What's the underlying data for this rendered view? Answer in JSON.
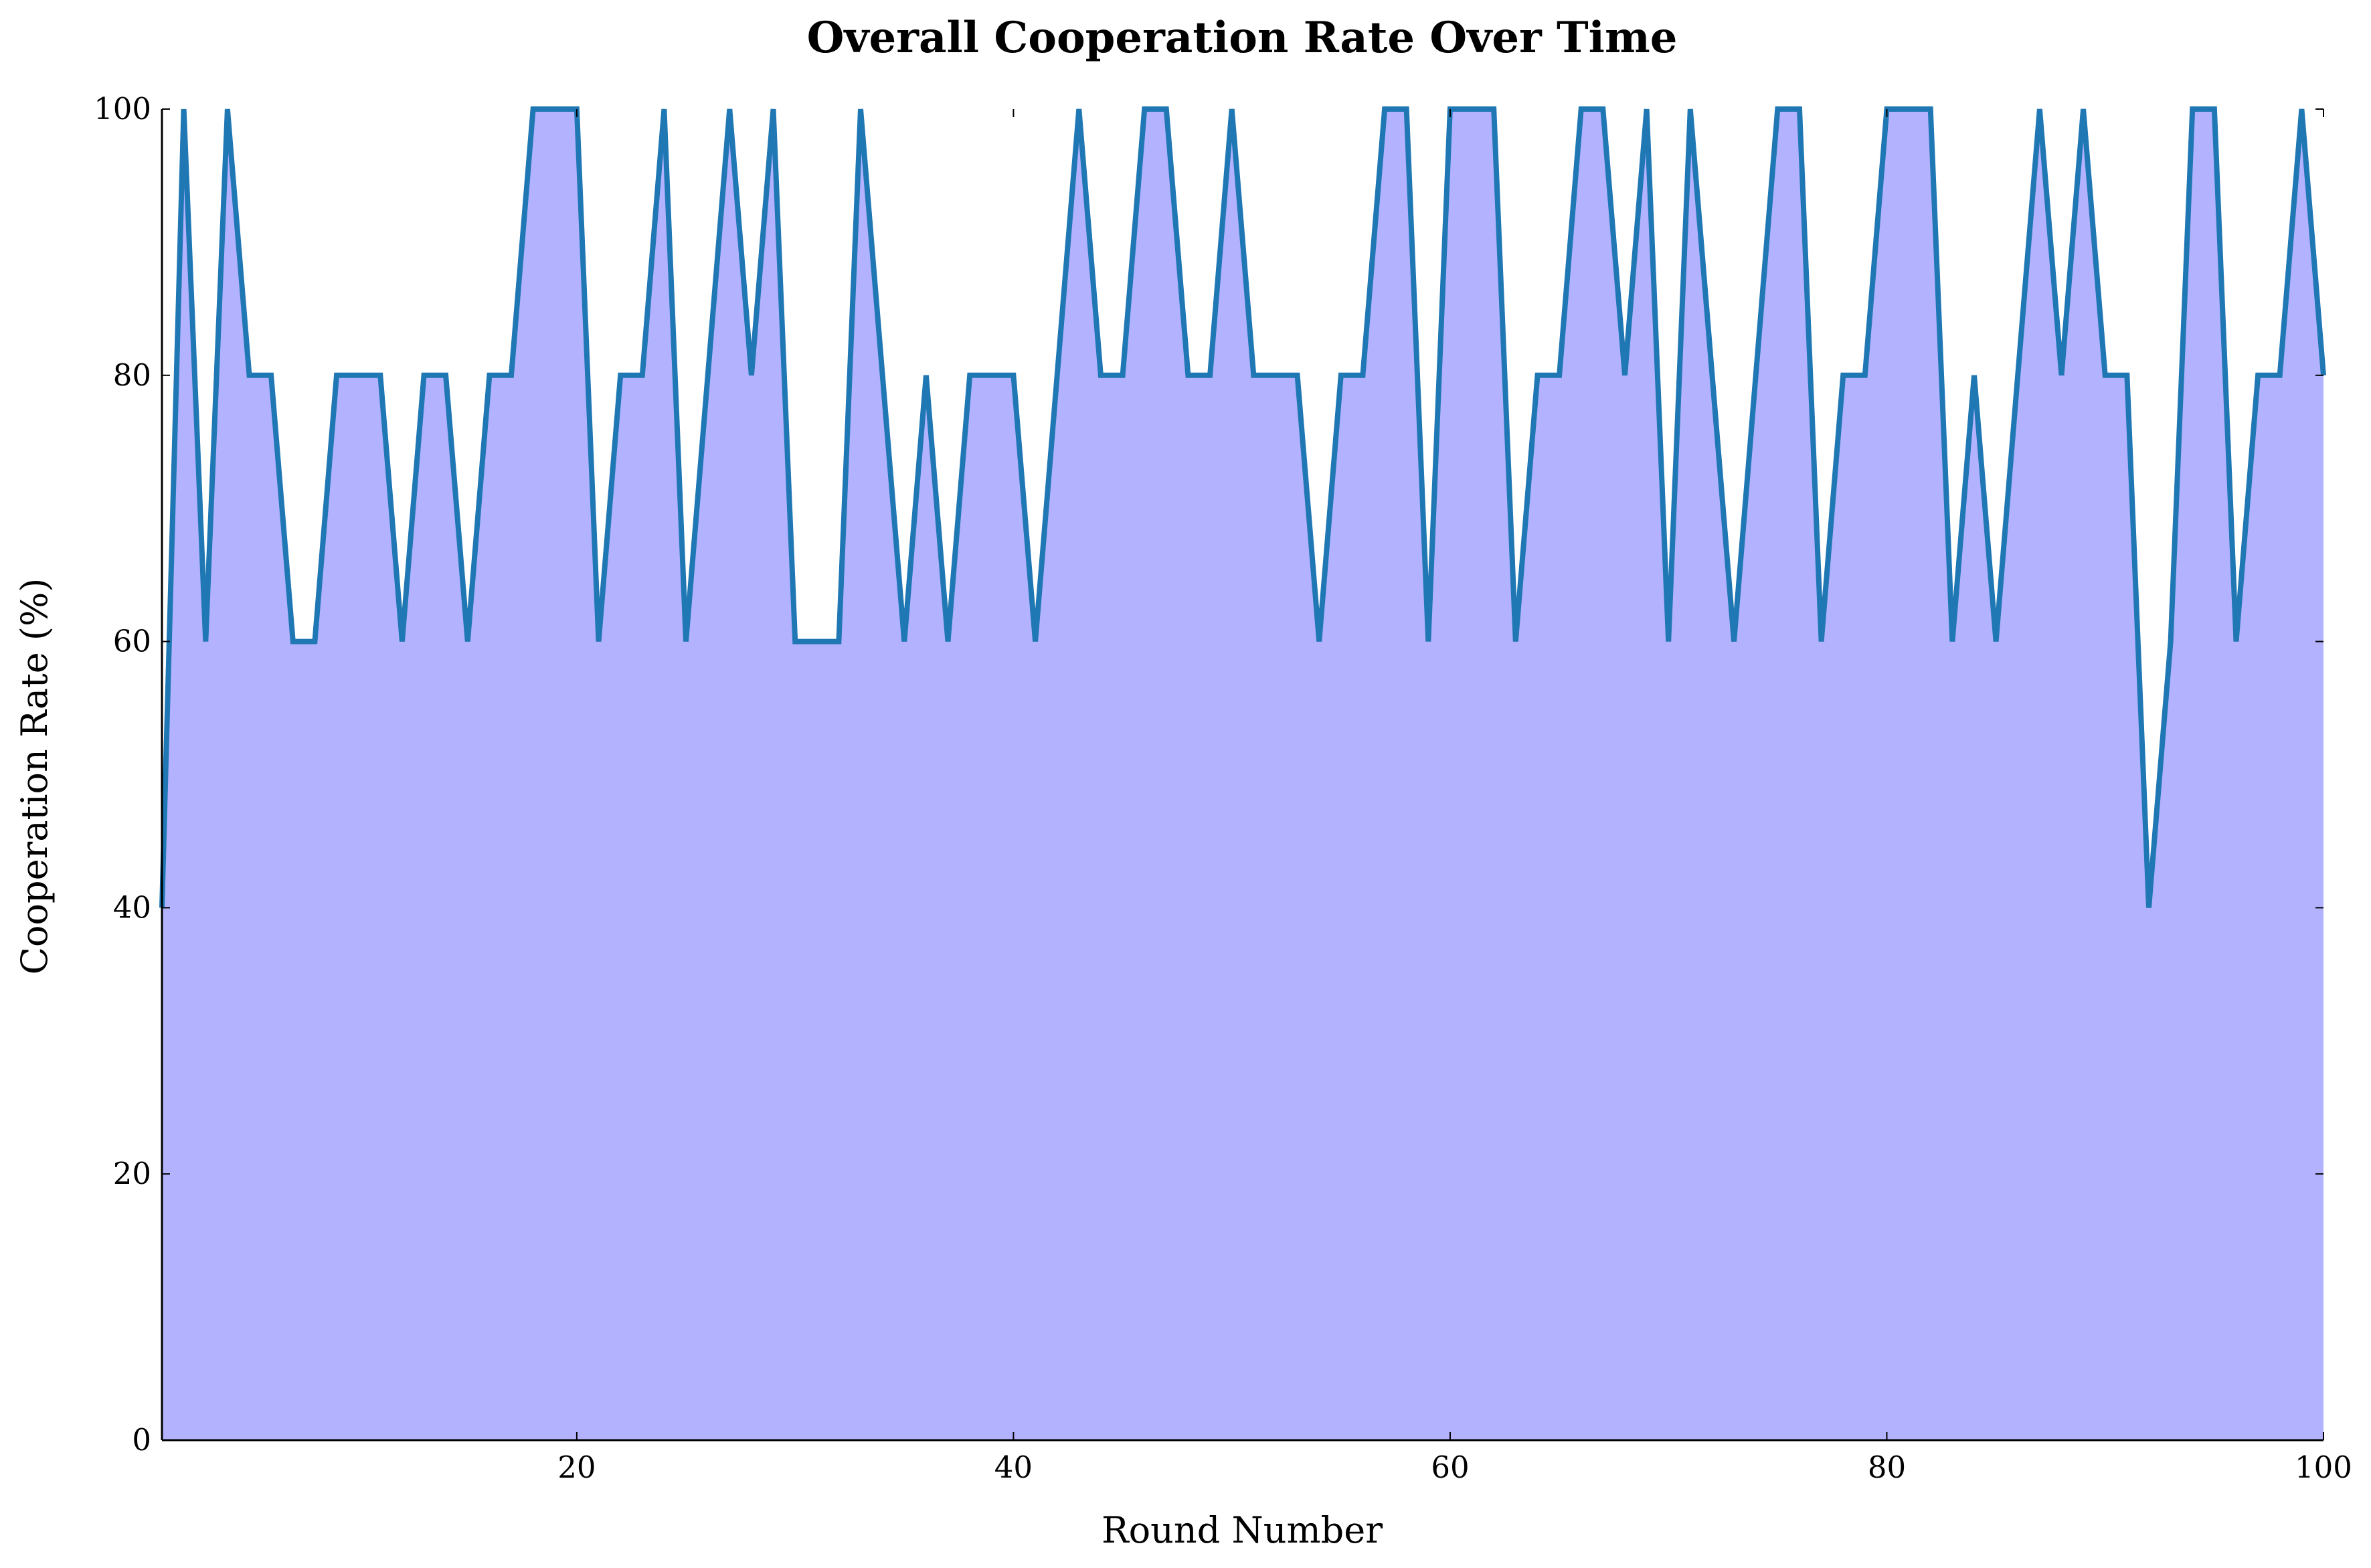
{
  "chart_data": {
    "type": "area",
    "title": "Overall Cooperation Rate Over Time",
    "xlabel": "Round Number",
    "ylabel": "Cooperation Rate (%)",
    "xlim": [
      1,
      100
    ],
    "ylim": [
      0,
      100
    ],
    "xticks": [
      20,
      40,
      60,
      80,
      100
    ],
    "yticks": [
      0,
      20,
      40,
      60,
      80,
      100
    ],
    "grid": false,
    "legend": "none",
    "colors": {
      "line": "#1f77b4",
      "fill": "#b2b2fe",
      "axis": "#000000"
    },
    "x": [
      1,
      2,
      3,
      4,
      5,
      6,
      7,
      8,
      9,
      10,
      11,
      12,
      13,
      14,
      15,
      16,
      17,
      18,
      19,
      20,
      21,
      22,
      23,
      24,
      25,
      26,
      27,
      28,
      29,
      30,
      31,
      32,
      33,
      34,
      35,
      36,
      37,
      38,
      39,
      40,
      41,
      42,
      43,
      44,
      45,
      46,
      47,
      48,
      49,
      50,
      51,
      52,
      53,
      54,
      55,
      56,
      57,
      58,
      59,
      60,
      61,
      62,
      63,
      64,
      65,
      66,
      67,
      68,
      69,
      70,
      71,
      72,
      73,
      74,
      75,
      76,
      77,
      78,
      79,
      80,
      81,
      82,
      83,
      84,
      85,
      86,
      87,
      88,
      89,
      90,
      91,
      92,
      93,
      94,
      95,
      96,
      97,
      98,
      99,
      100
    ],
    "series": [
      {
        "values": [
          40,
          100,
          60,
          100,
          80,
          80,
          60,
          60,
          80,
          80,
          80,
          60,
          80,
          80,
          60,
          80,
          80,
          100,
          100,
          100,
          60,
          80,
          80,
          100,
          60,
          80,
          100,
          80,
          100,
          60,
          60,
          60,
          100,
          80,
          60,
          80,
          60,
          80,
          80,
          80,
          60,
          80,
          100,
          80,
          80,
          100,
          100,
          80,
          80,
          100,
          80,
          80,
          80,
          60,
          80,
          80,
          100,
          100,
          60,
          100,
          100,
          100,
          60,
          80,
          80,
          100,
          100,
          80,
          100,
          60,
          100,
          80,
          60,
          80,
          100,
          100,
          60,
          80,
          80,
          100,
          100,
          100,
          60,
          80,
          60,
          80,
          100,
          80,
          100,
          80,
          80,
          40,
          60,
          100,
          100,
          60,
          80,
          80,
          100,
          80
        ]
      }
    ]
  }
}
